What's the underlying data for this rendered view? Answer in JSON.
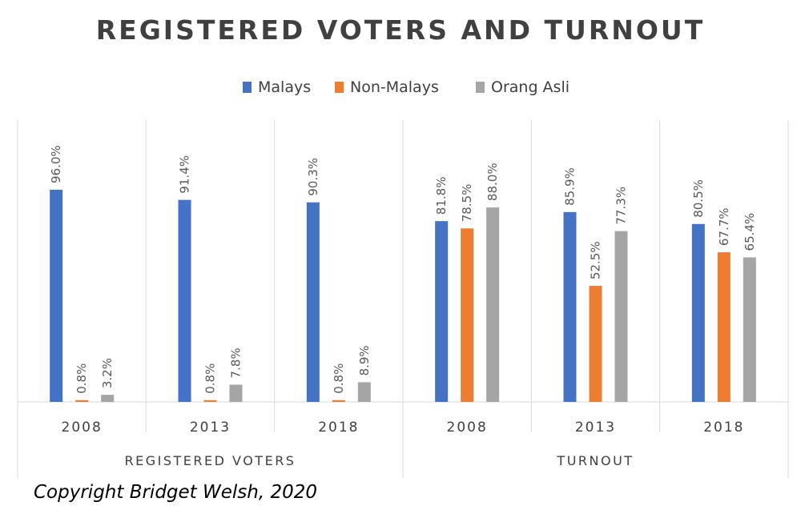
{
  "chart_data": {
    "type": "bar",
    "title": "REGISTERED VOTERS AND TURNOUT",
    "groups": [
      {
        "name": "REGISTERED VOTERS",
        "categories": [
          "2008",
          "2013",
          "2018"
        ]
      },
      {
        "name": "TURNOUT",
        "categories": [
          "2008",
          "2013",
          "2018"
        ]
      }
    ],
    "series": [
      {
        "name": "Malays",
        "color": "#4472C4",
        "values": [
          96.0,
          91.4,
          90.3,
          81.8,
          85.9,
          80.5
        ],
        "labels": [
          "96.0%",
          "91.4%",
          "90.3%",
          "81.8%",
          "85.9%",
          "80.5%"
        ]
      },
      {
        "name": "Non-Malays",
        "color": "#ED7D31",
        "values": [
          0.8,
          0.8,
          0.8,
          78.5,
          52.5,
          67.7
        ],
        "labels": [
          "0.8%",
          "0.8%",
          "0.8%",
          "78.5%",
          "52.5%",
          "67.7%"
        ]
      },
      {
        "name": "Orang Asli",
        "color": "#A5A5A5",
        "values": [
          3.2,
          7.8,
          8.9,
          88.0,
          77.3,
          65.4
        ],
        "labels": [
          "3.2%",
          "7.8%",
          "8.9%",
          "88.0%",
          "77.3%",
          "65.4%"
        ]
      }
    ],
    "ylim": [
      0,
      100
    ],
    "legend_position": "top",
    "grid": false
  },
  "copyright": "Copyright Bridget Welsh, 2020"
}
